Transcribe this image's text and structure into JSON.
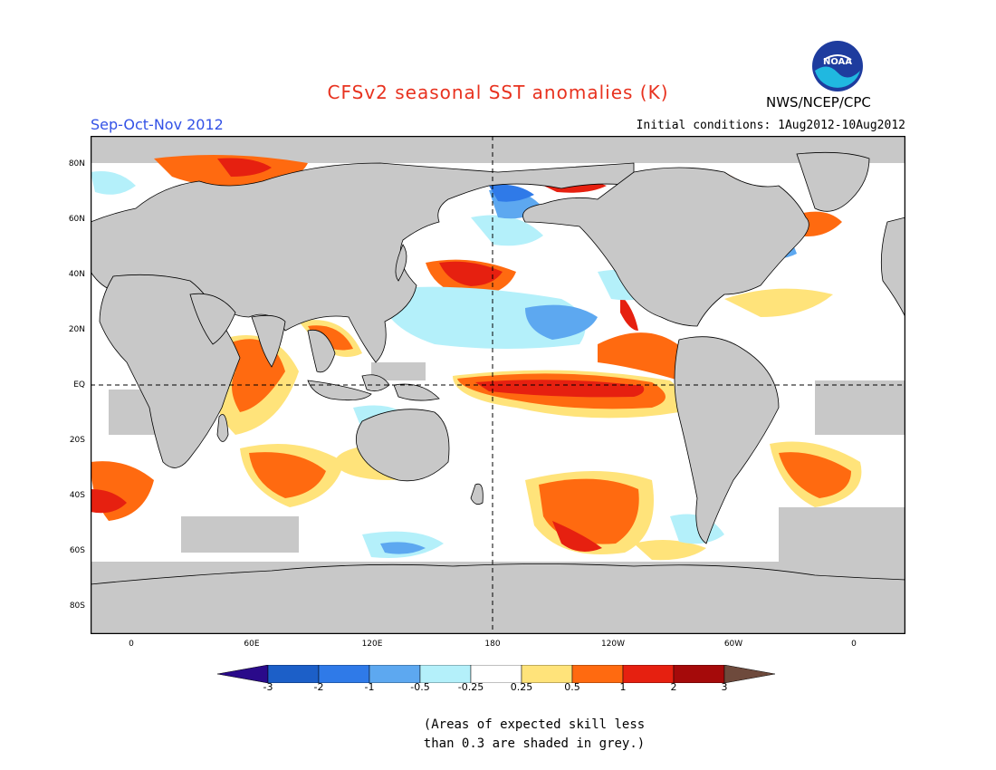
{
  "title": "CFSv2 seasonal SST anomalies (K)",
  "season": "Sep-Oct-Nov 2012",
  "initial_conditions": "Initial conditions: 1Aug2012-10Aug2012",
  "agency": "NWS/NCEP/CPC",
  "logo": {
    "text": "NOAA",
    "icon": "noaa-logo-icon"
  },
  "map": {
    "lat_labels": [
      "80N",
      "60N",
      "40N",
      "20N",
      "EQ",
      "20S",
      "40S",
      "60S",
      "80S"
    ],
    "lon_labels": [
      "0",
      "60E",
      "120E",
      "180",
      "120W",
      "60W",
      "0"
    ],
    "colors": {
      "ocean": "#ffffff",
      "land": "#c8c8c8",
      "lowskill": "#c8c8c8",
      "coast": "#000000"
    }
  },
  "colorbar": {
    "labels": [
      "-3",
      "-2",
      "-1",
      "-0.5",
      "-0.25",
      "0.25",
      "0.5",
      "1",
      "2",
      "3"
    ],
    "colors": [
      "#2a0a8a",
      "#1c5fc8",
      "#2f7ae8",
      "#5da8f0",
      "#b4f0fa",
      "#ffffff",
      "#ffe37a",
      "#ff6a10",
      "#e62010",
      "#a50a0a",
      "#6e4a3c"
    ]
  },
  "note_lines": [
    "(Areas of expected skill less",
    "than 0.3 are shaded in grey.)"
  ]
}
